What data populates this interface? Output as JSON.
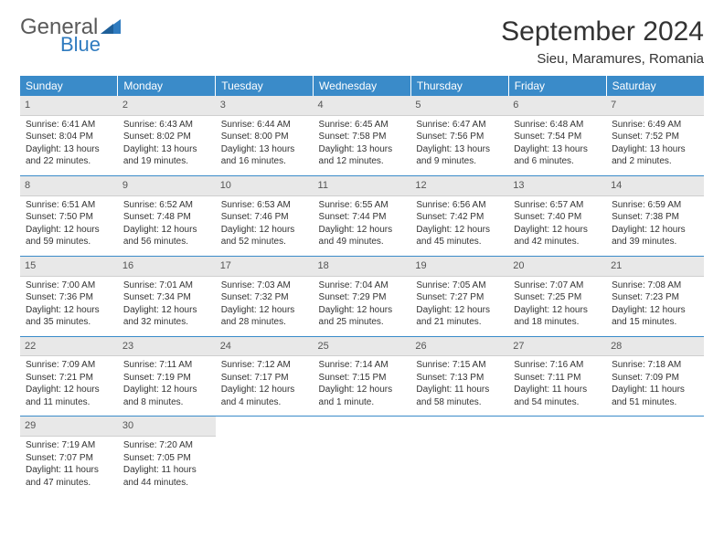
{
  "logo": {
    "text_general": "General",
    "text_blue": "Blue"
  },
  "title": "September 2024",
  "location": "Sieu, Maramures, Romania",
  "colors": {
    "header_bg": "#3a8bc9",
    "header_text": "#ffffff",
    "daynum_bg": "#e8e8e8",
    "row_border": "#3a8bc9",
    "text": "#333333",
    "logo_gray": "#5a5a5a",
    "logo_blue": "#2f7bbf"
  },
  "day_labels": [
    "Sunday",
    "Monday",
    "Tuesday",
    "Wednesday",
    "Thursday",
    "Friday",
    "Saturday"
  ],
  "weeks": [
    [
      {
        "num": "1",
        "sunrise": "Sunrise: 6:41 AM",
        "sunset": "Sunset: 8:04 PM",
        "dl1": "Daylight: 13 hours",
        "dl2": "and 22 minutes."
      },
      {
        "num": "2",
        "sunrise": "Sunrise: 6:43 AM",
        "sunset": "Sunset: 8:02 PM",
        "dl1": "Daylight: 13 hours",
        "dl2": "and 19 minutes."
      },
      {
        "num": "3",
        "sunrise": "Sunrise: 6:44 AM",
        "sunset": "Sunset: 8:00 PM",
        "dl1": "Daylight: 13 hours",
        "dl2": "and 16 minutes."
      },
      {
        "num": "4",
        "sunrise": "Sunrise: 6:45 AM",
        "sunset": "Sunset: 7:58 PM",
        "dl1": "Daylight: 13 hours",
        "dl2": "and 12 minutes."
      },
      {
        "num": "5",
        "sunrise": "Sunrise: 6:47 AM",
        "sunset": "Sunset: 7:56 PM",
        "dl1": "Daylight: 13 hours",
        "dl2": "and 9 minutes."
      },
      {
        "num": "6",
        "sunrise": "Sunrise: 6:48 AM",
        "sunset": "Sunset: 7:54 PM",
        "dl1": "Daylight: 13 hours",
        "dl2": "and 6 minutes."
      },
      {
        "num": "7",
        "sunrise": "Sunrise: 6:49 AM",
        "sunset": "Sunset: 7:52 PM",
        "dl1": "Daylight: 13 hours",
        "dl2": "and 2 minutes."
      }
    ],
    [
      {
        "num": "8",
        "sunrise": "Sunrise: 6:51 AM",
        "sunset": "Sunset: 7:50 PM",
        "dl1": "Daylight: 12 hours",
        "dl2": "and 59 minutes."
      },
      {
        "num": "9",
        "sunrise": "Sunrise: 6:52 AM",
        "sunset": "Sunset: 7:48 PM",
        "dl1": "Daylight: 12 hours",
        "dl2": "and 56 minutes."
      },
      {
        "num": "10",
        "sunrise": "Sunrise: 6:53 AM",
        "sunset": "Sunset: 7:46 PM",
        "dl1": "Daylight: 12 hours",
        "dl2": "and 52 minutes."
      },
      {
        "num": "11",
        "sunrise": "Sunrise: 6:55 AM",
        "sunset": "Sunset: 7:44 PM",
        "dl1": "Daylight: 12 hours",
        "dl2": "and 49 minutes."
      },
      {
        "num": "12",
        "sunrise": "Sunrise: 6:56 AM",
        "sunset": "Sunset: 7:42 PM",
        "dl1": "Daylight: 12 hours",
        "dl2": "and 45 minutes."
      },
      {
        "num": "13",
        "sunrise": "Sunrise: 6:57 AM",
        "sunset": "Sunset: 7:40 PM",
        "dl1": "Daylight: 12 hours",
        "dl2": "and 42 minutes."
      },
      {
        "num": "14",
        "sunrise": "Sunrise: 6:59 AM",
        "sunset": "Sunset: 7:38 PM",
        "dl1": "Daylight: 12 hours",
        "dl2": "and 39 minutes."
      }
    ],
    [
      {
        "num": "15",
        "sunrise": "Sunrise: 7:00 AM",
        "sunset": "Sunset: 7:36 PM",
        "dl1": "Daylight: 12 hours",
        "dl2": "and 35 minutes."
      },
      {
        "num": "16",
        "sunrise": "Sunrise: 7:01 AM",
        "sunset": "Sunset: 7:34 PM",
        "dl1": "Daylight: 12 hours",
        "dl2": "and 32 minutes."
      },
      {
        "num": "17",
        "sunrise": "Sunrise: 7:03 AM",
        "sunset": "Sunset: 7:32 PM",
        "dl1": "Daylight: 12 hours",
        "dl2": "and 28 minutes."
      },
      {
        "num": "18",
        "sunrise": "Sunrise: 7:04 AM",
        "sunset": "Sunset: 7:29 PM",
        "dl1": "Daylight: 12 hours",
        "dl2": "and 25 minutes."
      },
      {
        "num": "19",
        "sunrise": "Sunrise: 7:05 AM",
        "sunset": "Sunset: 7:27 PM",
        "dl1": "Daylight: 12 hours",
        "dl2": "and 21 minutes."
      },
      {
        "num": "20",
        "sunrise": "Sunrise: 7:07 AM",
        "sunset": "Sunset: 7:25 PM",
        "dl1": "Daylight: 12 hours",
        "dl2": "and 18 minutes."
      },
      {
        "num": "21",
        "sunrise": "Sunrise: 7:08 AM",
        "sunset": "Sunset: 7:23 PM",
        "dl1": "Daylight: 12 hours",
        "dl2": "and 15 minutes."
      }
    ],
    [
      {
        "num": "22",
        "sunrise": "Sunrise: 7:09 AM",
        "sunset": "Sunset: 7:21 PM",
        "dl1": "Daylight: 12 hours",
        "dl2": "and 11 minutes."
      },
      {
        "num": "23",
        "sunrise": "Sunrise: 7:11 AM",
        "sunset": "Sunset: 7:19 PM",
        "dl1": "Daylight: 12 hours",
        "dl2": "and 8 minutes."
      },
      {
        "num": "24",
        "sunrise": "Sunrise: 7:12 AM",
        "sunset": "Sunset: 7:17 PM",
        "dl1": "Daylight: 12 hours",
        "dl2": "and 4 minutes."
      },
      {
        "num": "25",
        "sunrise": "Sunrise: 7:14 AM",
        "sunset": "Sunset: 7:15 PM",
        "dl1": "Daylight: 12 hours",
        "dl2": "and 1 minute."
      },
      {
        "num": "26",
        "sunrise": "Sunrise: 7:15 AM",
        "sunset": "Sunset: 7:13 PM",
        "dl1": "Daylight: 11 hours",
        "dl2": "and 58 minutes."
      },
      {
        "num": "27",
        "sunrise": "Sunrise: 7:16 AM",
        "sunset": "Sunset: 7:11 PM",
        "dl1": "Daylight: 11 hours",
        "dl2": "and 54 minutes."
      },
      {
        "num": "28",
        "sunrise": "Sunrise: 7:18 AM",
        "sunset": "Sunset: 7:09 PM",
        "dl1": "Daylight: 11 hours",
        "dl2": "and 51 minutes."
      }
    ],
    [
      {
        "num": "29",
        "sunrise": "Sunrise: 7:19 AM",
        "sunset": "Sunset: 7:07 PM",
        "dl1": "Daylight: 11 hours",
        "dl2": "and 47 minutes."
      },
      {
        "num": "30",
        "sunrise": "Sunrise: 7:20 AM",
        "sunset": "Sunset: 7:05 PM",
        "dl1": "Daylight: 11 hours",
        "dl2": "and 44 minutes."
      },
      {
        "empty": true
      },
      {
        "empty": true
      },
      {
        "empty": true
      },
      {
        "empty": true
      },
      {
        "empty": true
      }
    ]
  ]
}
